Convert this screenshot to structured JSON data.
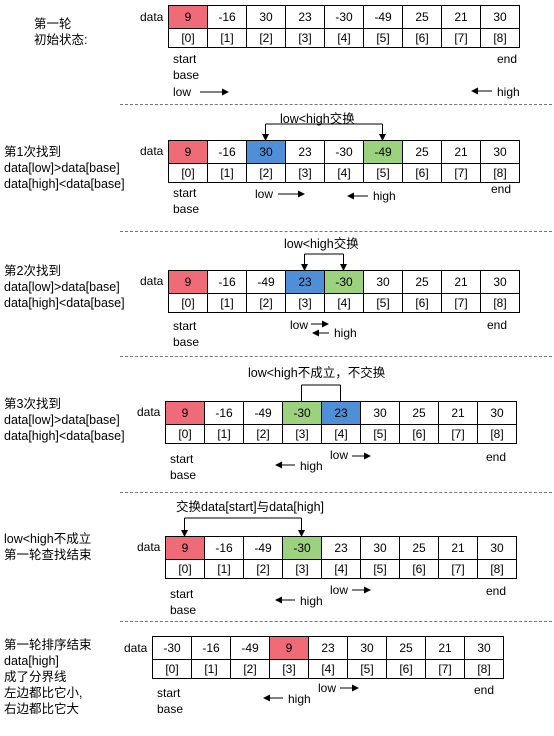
{
  "colors": {
    "red": "#f06b78",
    "blue": "#4f8fd8",
    "green": "#9cd17e",
    "line": "#000000",
    "separator": "#777777"
  },
  "steps": [
    {
      "side_text": "第一轮\n初始状态:",
      "data_label": "data",
      "values": [
        "9",
        "-16",
        "30",
        "23",
        "-30",
        "-49",
        "25",
        "21",
        "30"
      ],
      "indices": [
        "[0]",
        "[1]",
        "[2]",
        "[3]",
        "[4]",
        "[5]",
        "[6]",
        "[7]",
        "[8]"
      ],
      "highlights": {
        "0": "red"
      },
      "caption": "",
      "labels": {
        "start": "start",
        "base": "base",
        "end": "end",
        "low": "low",
        "high": "high"
      }
    },
    {
      "side_text": "第1次找到\ndata[low]>data[base]\ndata[high]<data[base]",
      "data_label": "data",
      "values": [
        "9",
        "-16",
        "30",
        "23",
        "-30",
        "-49",
        "25",
        "21",
        "30"
      ],
      "indices": [
        "[0]",
        "[1]",
        "[2]",
        "[3]",
        "[4]",
        "[5]",
        "[6]",
        "[7]",
        "[8]"
      ],
      "highlights": {
        "0": "red",
        "2": "blue",
        "5": "green"
      },
      "caption": "low<high交换",
      "labels": {
        "start": "start",
        "base": "base",
        "end": "end",
        "low": "low",
        "high": "high"
      }
    },
    {
      "side_text": "第2次找到\ndata[low]>data[base]\ndata[high]<data[base]",
      "data_label": "data",
      "values": [
        "9",
        "-16",
        "-49",
        "23",
        "-30",
        "30",
        "25",
        "21",
        "30"
      ],
      "indices": [
        "[0]",
        "[1]",
        "[2]",
        "[3]",
        "[4]",
        "[5]",
        "[6]",
        "[7]",
        "[8]"
      ],
      "highlights": {
        "0": "red",
        "3": "blue",
        "4": "green"
      },
      "caption": "low<high交换",
      "labels": {
        "start": "start",
        "base": "base",
        "end": "end",
        "low": "low",
        "high": "high"
      }
    },
    {
      "side_text": "第3次找到\ndata[low]>data[base]\ndata[high]<data[base]",
      "data_label": "data",
      "values": [
        "9",
        "-16",
        "-49",
        "-30",
        "23",
        "30",
        "25",
        "21",
        "30"
      ],
      "indices": [
        "[0]",
        "[1]",
        "[2]",
        "[3]",
        "[4]",
        "[5]",
        "[6]",
        "[7]",
        "[8]"
      ],
      "highlights": {
        "0": "red",
        "3": "green",
        "4": "blue"
      },
      "caption": "low<high不成立，不交换",
      "labels": {
        "start": "start",
        "base": "base",
        "end": "end",
        "low": "low",
        "high": "high"
      }
    },
    {
      "side_text": "low<high不成立\n第一轮查找结束",
      "data_label": "data",
      "values": [
        "9",
        "-16",
        "-49",
        "-30",
        "23",
        "30",
        "25",
        "21",
        "30"
      ],
      "indices": [
        "[0]",
        "[1]",
        "[2]",
        "[3]",
        "[4]",
        "[5]",
        "[6]",
        "[7]",
        "[8]"
      ],
      "highlights": {
        "0": "red",
        "3": "green"
      },
      "caption": "交换data[start]与data[high]",
      "labels": {
        "start": "start",
        "base": "base",
        "end": "end",
        "low": "low",
        "high": "high"
      }
    },
    {
      "side_text": "第一轮排序结束\ndata[high]\n成了分界线\n左边都比它小,\n右边都比它大",
      "data_label": "data",
      "values": [
        "-30",
        "-16",
        "-49",
        "9",
        "23",
        "30",
        "25",
        "21",
        "30"
      ],
      "indices": [
        "[0]",
        "[1]",
        "[2]",
        "[3]",
        "[4]",
        "[5]",
        "[6]",
        "[7]",
        "[8]"
      ],
      "highlights": {
        "3": "red"
      },
      "caption": "",
      "labels": {
        "start": "start",
        "base": "base",
        "end": "end",
        "low": "low",
        "high": "high"
      }
    }
  ]
}
